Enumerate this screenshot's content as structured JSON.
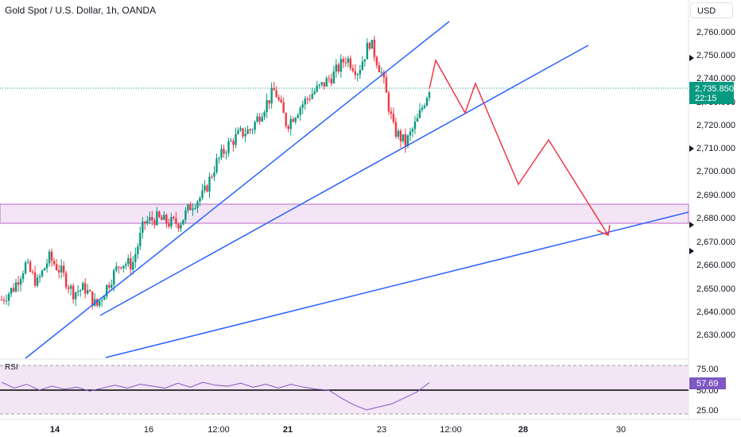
{
  "header": {
    "title": "Gold Spot / U.S. Dollar, 1h, OANDA",
    "currency": "USD"
  },
  "price_axis": {
    "ticks": [
      "2,760.000",
      "2,750.000",
      "2,740.000",
      "2,730.000",
      "2,720.000",
      "2,710.000",
      "2,700.000",
      "2,690.000",
      "2,680.000",
      "2,670.000",
      "2,660.000",
      "2,650.000",
      "2,640.000",
      "2,630.000"
    ],
    "current_price": "2,735.850",
    "countdown": "22:15",
    "current_color": "#089981"
  },
  "time_axis": {
    "ticks": [
      {
        "label": "14",
        "bold": true
      },
      {
        "label": "16",
        "bold": false
      },
      {
        "label": "12:00",
        "bold": false
      },
      {
        "label": "21",
        "bold": true
      },
      {
        "label": "23",
        "bold": false
      },
      {
        "label": "12:00",
        "bold": false
      },
      {
        "label": "28",
        "bold": true
      },
      {
        "label": "30",
        "bold": false
      }
    ]
  },
  "rsi": {
    "label": "RSI",
    "ticks": [
      "75.00",
      "50.00",
      "25.00"
    ],
    "current": "57.69",
    "color": "#7e57c2"
  },
  "colors": {
    "up": "#089981",
    "down": "#f23645",
    "trendline": "#2962ff",
    "projection": "#f23645",
    "zone": "#e1bee7"
  },
  "chart_data": {
    "type": "candlestick",
    "title": "Gold Spot / U.S. Dollar, 1h, OANDA",
    "ylim": [
      2622,
      2768
    ],
    "y_unit": "USD",
    "last_price": 2735.85,
    "close_path": [
      {
        "x": "14 00:00",
        "y": 2645
      },
      {
        "x": "14 06:00",
        "y": 2650
      },
      {
        "x": "14 12:00",
        "y": 2660
      },
      {
        "x": "14 18:00",
        "y": 2652
      },
      {
        "x": "15 00:00",
        "y": 2663
      },
      {
        "x": "15 06:00",
        "y": 2657
      },
      {
        "x": "15 12:00",
        "y": 2648
      },
      {
        "x": "15 18:00",
        "y": 2650
      },
      {
        "x": "16 00:00",
        "y": 2642
      },
      {
        "x": "16 06:00",
        "y": 2652
      },
      {
        "x": "16 12:00",
        "y": 2661
      },
      {
        "x": "16 18:00",
        "y": 2660
      },
      {
        "x": "17 00:00",
        "y": 2678
      },
      {
        "x": "17 06:00",
        "y": 2680
      },
      {
        "x": "17 12:00",
        "y": 2678
      },
      {
        "x": "17 18:00",
        "y": 2678
      },
      {
        "x": "18 00:00",
        "y": 2686
      },
      {
        "x": "18 06:00",
        "y": 2690
      },
      {
        "x": "18 12:00",
        "y": 2703
      },
      {
        "x": "18 18:00",
        "y": 2711
      },
      {
        "x": "19 00:00",
        "y": 2716
      },
      {
        "x": "19 06:00",
        "y": 2718
      },
      {
        "x": "19 12:00",
        "y": 2727
      },
      {
        "x": "19 18:00",
        "y": 2735
      },
      {
        "x": "20 00:00",
        "y": 2720
      },
      {
        "x": "20 06:00",
        "y": 2727
      },
      {
        "x": "20 12:00",
        "y": 2733
      },
      {
        "x": "20 18:00",
        "y": 2737
      },
      {
        "x": "21 00:00",
        "y": 2742
      },
      {
        "x": "21 06:00",
        "y": 2749
      },
      {
        "x": "21 12:00",
        "y": 2743
      },
      {
        "x": "21 18:00",
        "y": 2756
      },
      {
        "x": "22 00:00",
        "y": 2742
      },
      {
        "x": "22 06:00",
        "y": 2718
      },
      {
        "x": "22 12:00",
        "y": 2712
      },
      {
        "x": "22 18:00",
        "y": 2722
      },
      {
        "x": "23 00:00",
        "y": 2736
      }
    ],
    "rsi_values": [
      58,
      52,
      56,
      50,
      54,
      51,
      53,
      49,
      52,
      55,
      52,
      56,
      54,
      52,
      57,
      53,
      58,
      55,
      54,
      57,
      53,
      56,
      52,
      56,
      53,
      51,
      50,
      42,
      35,
      30,
      33,
      36,
      42,
      48,
      57.69
    ],
    "rsi_levels": [
      70,
      50,
      30
    ],
    "support_zone": [
      2677.8,
      2686.2
    ],
    "trendlines": [
      {
        "name": "steep",
        "from": {
          "x": "13 12:00",
          "y": 2624
        },
        "to": {
          "x": "25 06:00",
          "y": 2764
        }
      },
      {
        "name": "middle",
        "from": {
          "x": "15 12:00",
          "y": 2639
        },
        "to": {
          "x": "28 12:00",
          "y": 2755
        }
      },
      {
        "name": "lower",
        "from": {
          "x": "16 00:00",
          "y": 2621
        },
        "to": {
          "x": "30 18:00",
          "y": 2683
        }
      }
    ],
    "projection": [
      {
        "x": "24 12:00",
        "y": 2748
      },
      {
        "x": "25 12:00",
        "y": 2725
      },
      {
        "x": "26 00:00",
        "y": 2737
      },
      {
        "x": "27 00:00",
        "y": 2695
      },
      {
        "x": "28 06:00",
        "y": 2714
      },
      {
        "x": "30 00:00",
        "y": 2672
      }
    ]
  }
}
